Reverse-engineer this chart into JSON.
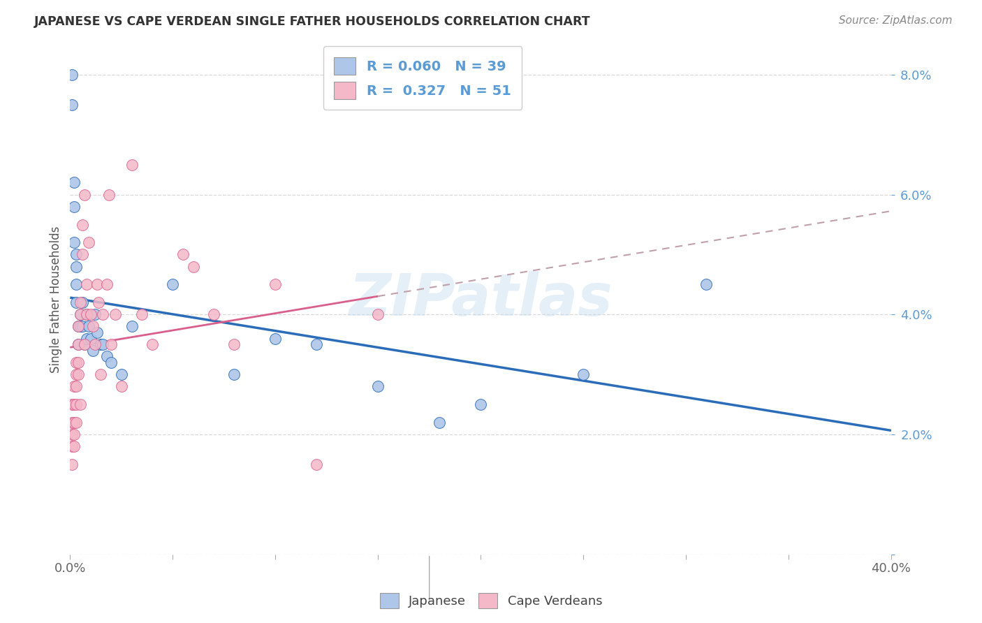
{
  "title": "JAPANESE VS CAPE VERDEAN SINGLE FATHER HOUSEHOLDS CORRELATION CHART",
  "source": "Source: ZipAtlas.com",
  "ylabel": "Single Father Households",
  "watermark": "ZIPatlas",
  "japanese": {
    "R": 0.06,
    "N": 39,
    "color": "#aec6e8",
    "line_color": "#2b6cb8",
    "x": [
      0.001,
      0.001,
      0.002,
      0.002,
      0.002,
      0.003,
      0.003,
      0.003,
      0.003,
      0.004,
      0.004,
      0.005,
      0.005,
      0.005,
      0.006,
      0.006,
      0.007,
      0.008,
      0.008,
      0.009,
      0.01,
      0.011,
      0.012,
      0.013,
      0.015,
      0.016,
      0.018,
      0.02,
      0.025,
      0.03,
      0.05,
      0.08,
      0.1,
      0.12,
      0.15,
      0.18,
      0.2,
      0.25,
      0.31
    ],
    "y": [
      0.075,
      0.08,
      0.062,
      0.058,
      0.052,
      0.05,
      0.048,
      0.045,
      0.042,
      0.038,
      0.035,
      0.038,
      0.04,
      0.038,
      0.038,
      0.042,
      0.035,
      0.036,
      0.04,
      0.038,
      0.036,
      0.034,
      0.04,
      0.037,
      0.035,
      0.035,
      0.033,
      0.032,
      0.03,
      0.038,
      0.045,
      0.03,
      0.036,
      0.035,
      0.028,
      0.022,
      0.025,
      0.03,
      0.045
    ]
  },
  "capeverdean": {
    "R": 0.327,
    "N": 51,
    "color": "#f4b8c8",
    "line_color": "#d95f8a",
    "x": [
      0.001,
      0.001,
      0.001,
      0.001,
      0.001,
      0.002,
      0.002,
      0.002,
      0.002,
      0.002,
      0.003,
      0.003,
      0.003,
      0.003,
      0.003,
      0.004,
      0.004,
      0.004,
      0.004,
      0.005,
      0.005,
      0.005,
      0.006,
      0.006,
      0.007,
      0.007,
      0.008,
      0.008,
      0.009,
      0.01,
      0.011,
      0.012,
      0.013,
      0.014,
      0.015,
      0.016,
      0.018,
      0.019,
      0.02,
      0.022,
      0.025,
      0.03,
      0.035,
      0.04,
      0.055,
      0.06,
      0.07,
      0.08,
      0.1,
      0.12,
      0.15
    ],
    "y": [
      0.02,
      0.022,
      0.025,
      0.018,
      0.015,
      0.018,
      0.02,
      0.022,
      0.028,
      0.025,
      0.028,
      0.03,
      0.032,
      0.025,
      0.022,
      0.03,
      0.032,
      0.035,
      0.038,
      0.04,
      0.042,
      0.025,
      0.05,
      0.055,
      0.035,
      0.06,
      0.04,
      0.045,
      0.052,
      0.04,
      0.038,
      0.035,
      0.045,
      0.042,
      0.03,
      0.04,
      0.045,
      0.06,
      0.035,
      0.04,
      0.028,
      0.065,
      0.04,
      0.035,
      0.05,
      0.048,
      0.04,
      0.035,
      0.045,
      0.015,
      0.04
    ]
  },
  "xlim": [
    0.0,
    0.4
  ],
  "ylim": [
    0.0,
    0.085
  ],
  "yticks": [
    0.0,
    0.02,
    0.04,
    0.06,
    0.08
  ],
  "ytick_labels": [
    "",
    "2.0%",
    "4.0%",
    "6.0%",
    "8.0%"
  ],
  "background_color": "#ffffff",
  "grid_color": "#d8d8d8",
  "title_color": "#333333",
  "axis_label_color": "#5b9bd5",
  "legend_text_color": "#5b9bd5"
}
